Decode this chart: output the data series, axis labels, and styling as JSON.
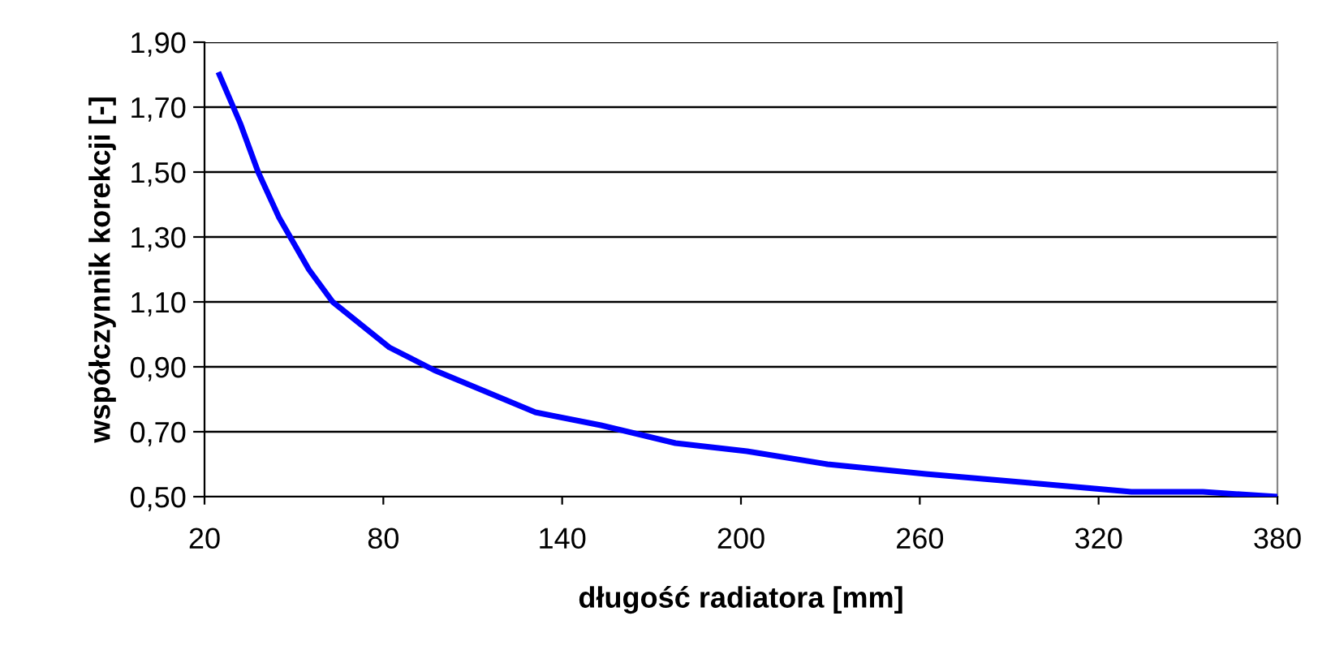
{
  "chart_data": {
    "type": "line",
    "xlabel": "długość radiatora [mm]",
    "ylabel": "współczynnik korekcji [-]",
    "x": [
      25,
      32,
      38,
      45,
      55,
      63,
      82,
      97,
      131,
      153,
      178,
      202,
      229,
      262,
      300,
      331,
      355,
      380
    ],
    "series": [
      {
        "color": "#0000ff",
        "values": [
          1.8,
          1.65,
          1.5,
          1.36,
          1.2,
          1.1,
          0.96,
          0.89,
          0.76,
          0.72,
          0.665,
          0.64,
          0.6,
          0.57,
          0.54,
          0.515,
          0.515,
          0.5
        ]
      }
    ],
    "xlim": [
      20,
      380
    ],
    "xticks": [
      20,
      80,
      140,
      200,
      260,
      320,
      380
    ],
    "ylim": [
      0.5,
      1.9
    ],
    "yticks": [
      {
        "value": 0.5,
        "label": "0,50"
      },
      {
        "value": 0.7,
        "label": "0,70"
      },
      {
        "value": 0.9,
        "label": "0,90"
      },
      {
        "value": 1.1,
        "label": "1,10"
      },
      {
        "value": 1.3,
        "label": "1,30"
      },
      {
        "value": 1.5,
        "label": "1,50"
      },
      {
        "value": 1.7,
        "label": "1,70"
      },
      {
        "value": 1.9,
        "label": "1,90"
      }
    ],
    "grid": "y",
    "marker": "none",
    "line_style": "solid"
  }
}
